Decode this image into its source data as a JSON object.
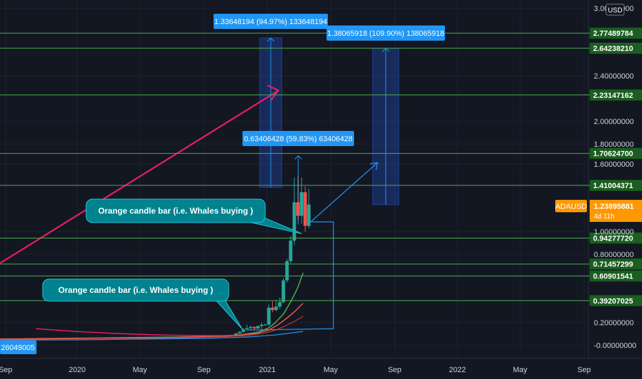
{
  "chart_data": {
    "type": "candlestick",
    "symbol": "ADAUSD",
    "currency": "USD",
    "ylim": [
      -0.05,
      3.0
    ],
    "y_ticks": [
      "3.00000000",
      "2.40000000",
      "2.00000000",
      "1.80000000",
      "1.60000000",
      "1.00000000",
      "0.80000000",
      "0.20000000",
      "-0.00000000"
    ],
    "x_ticks": [
      "Sep",
      "2020",
      "May",
      "Sep",
      "2021",
      "May",
      "Sep",
      "2022",
      "May",
      "Sep"
    ],
    "levels": [
      "2.77489784",
      "2.64238210",
      "2.23147162",
      "1.70624700",
      "1.41004371",
      "0.94277720",
      "0.71457299",
      "0.60901541",
      "0.39207025"
    ],
    "current_price": {
      "symbol": "ADAUSD",
      "value": "1.23895881",
      "countdown": "4d 11h"
    },
    "left_label": "26049005",
    "measurements": [
      {
        "label": "1.33648194 (94.97%) 133648194"
      },
      {
        "label": "1.38065918 (109.90%) 138065918"
      },
      {
        "label": "0.63406428 (59.83%) 63406428"
      }
    ],
    "annotations": [
      "Orange candle  bar (i.e. Whales buying )",
      "Orange candle  bar (i.e. Whales buying )"
    ],
    "candles": [
      {
        "t": "2020-11-02",
        "o": 0.095,
        "h": 0.11,
        "l": 0.09,
        "c": 0.104
      },
      {
        "t": "2020-11-09",
        "o": 0.104,
        "h": 0.125,
        "l": 0.1,
        "c": 0.118
      },
      {
        "t": "2020-11-16",
        "o": 0.118,
        "h": 0.15,
        "l": 0.11,
        "c": 0.14
      },
      {
        "t": "2020-11-23",
        "o": 0.14,
        "h": 0.18,
        "l": 0.125,
        "c": 0.15
      },
      {
        "t": "2020-11-30",
        "o": 0.15,
        "h": 0.175,
        "l": 0.14,
        "c": 0.16
      },
      {
        "t": "2020-12-07",
        "o": 0.16,
        "h": 0.17,
        "l": 0.14,
        "c": 0.148
      },
      {
        "t": "2020-12-14",
        "o": 0.148,
        "h": 0.175,
        "l": 0.145,
        "c": 0.168
      },
      {
        "t": "2020-12-21",
        "o": 0.168,
        "h": 0.2,
        "l": 0.13,
        "c": 0.18
      },
      {
        "t": "2020-12-28",
        "o": 0.18,
        "h": 0.19,
        "l": 0.17,
        "c": 0.182
      },
      {
        "t": "2021-01-04",
        "o": 0.182,
        "h": 0.36,
        "l": 0.17,
        "c": 0.33
      },
      {
        "t": "2021-01-11",
        "o": 0.33,
        "h": 0.39,
        "l": 0.29,
        "c": 0.31
      },
      {
        "t": "2021-01-18",
        "o": 0.31,
        "h": 0.4,
        "l": 0.3,
        "c": 0.34
      },
      {
        "t": "2021-01-25",
        "o": 0.34,
        "h": 0.42,
        "l": 0.32,
        "c": 0.38
      },
      {
        "t": "2021-02-01",
        "o": 0.38,
        "h": 0.59,
        "l": 0.37,
        "c": 0.57
      },
      {
        "t": "2021-02-08",
        "o": 0.57,
        "h": 0.76,
        "l": 0.55,
        "c": 0.74
      },
      {
        "t": "2021-02-15",
        "o": 0.74,
        "h": 0.96,
        "l": 0.72,
        "c": 0.92
      },
      {
        "t": "2021-02-22",
        "o": 0.92,
        "h": 1.48,
        "l": 0.88,
        "c": 1.26
      },
      {
        "t": "2021-03-01",
        "o": 1.26,
        "h": 1.5,
        "l": 1.1,
        "c": 1.14
      },
      {
        "t": "2021-03-08",
        "o": 1.14,
        "h": 1.48,
        "l": 1.07,
        "c": 1.35
      },
      {
        "t": "2021-03-15",
        "o": 1.35,
        "h": 1.4,
        "l": 1.0,
        "c": 1.05
      },
      {
        "t": "2021-03-22",
        "o": 1.05,
        "h": 1.38,
        "l": 1.03,
        "c": 1.24
      }
    ]
  }
}
